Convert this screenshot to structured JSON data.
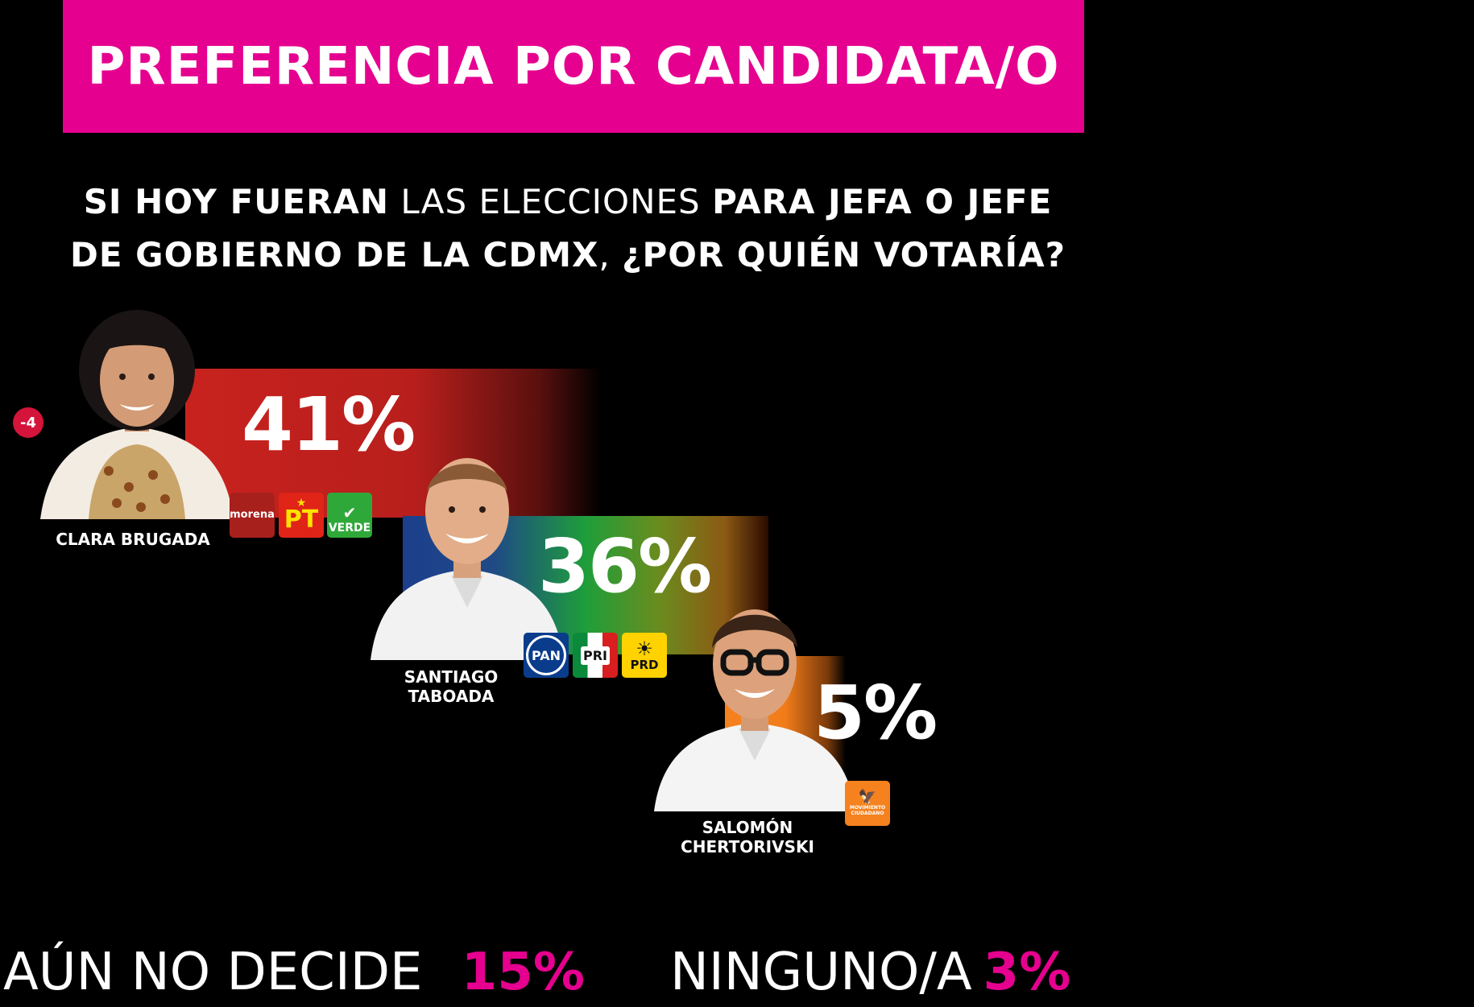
{
  "header": {
    "title": "PREFERENCIA POR CANDIDATA/O"
  },
  "question": {
    "line1_bold_a": "SI HOY FUERAN",
    "line1_light": " LAS ELECCIONES ",
    "line1_bold_b": "PARA JEFA O JEFE",
    "line2_bold": "DE GOBIERNO DE LA CDMX",
    "line2_light": ", ",
    "line2_bold_b": "¿POR QUIÉN VOTARÍA?"
  },
  "chart_data": {
    "type": "bar",
    "categories": [
      "CLARA BRUGADA",
      "SANTIAGO TABOADA",
      "SALOMÓN CHERTORIVSKI"
    ],
    "values": [
      41,
      36,
      5
    ],
    "value_labels": [
      "41%",
      "36%",
      "5%"
    ],
    "parties": [
      [
        "morena",
        "PT",
        "VERDE"
      ],
      [
        "PAN",
        "PRI",
        "PRD"
      ],
      [
        "MOVIMIENTO CIUDADANO"
      ]
    ],
    "change_badge": {
      "candidate": "CLARA BRUGADA",
      "text": "-4"
    },
    "colors": {
      "clara": "#c8221e",
      "santiago": [
        "#1c3f8c",
        "#1e9e3a",
        "#c72a26"
      ],
      "salomon": "#f5821f",
      "accent": "#e6008f"
    }
  },
  "names": {
    "clara": "CLARA BRUGADA",
    "santiago": "SANTIAGO\nTABOADA",
    "salomon": "SALOMÓN\nCHERTORIVSKI"
  },
  "logos": {
    "morena": "morena",
    "pt": "PT",
    "verde": "VERDE",
    "pan": "PAN",
    "pri": "PRI",
    "prd": "PRD",
    "mc": "MOVIMIENTO CIUDADANO"
  },
  "footer": {
    "undecided_label": "AÚN NO DECIDE",
    "undecided_value": "15%",
    "none_label": "NINGUNO/A",
    "none_value": "3%"
  }
}
